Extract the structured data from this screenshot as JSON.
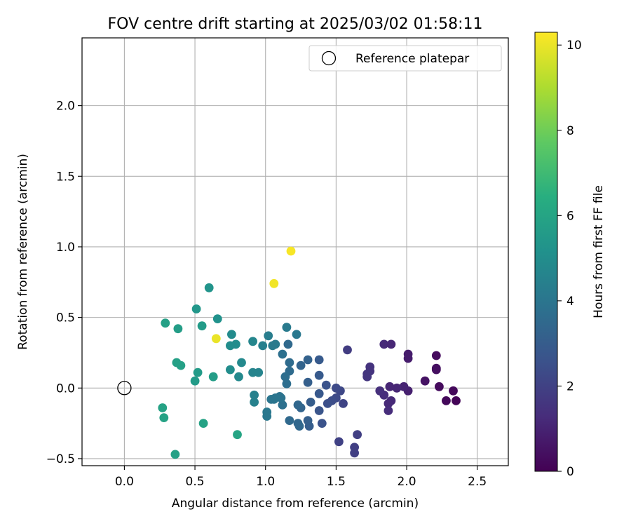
{
  "chart_data": {
    "type": "scatter",
    "title": "FOV centre drift starting at 2025/03/02 01:58:11",
    "xlabel": "Angular distance from reference (arcmin)",
    "ylabel": "Rotation from reference (arcmin)",
    "xlim": [
      -0.3,
      2.72
    ],
    "ylim": [
      -0.55,
      2.48
    ],
    "xticks": [
      "0.0",
      "0.5",
      "1.0",
      "1.5",
      "2.0",
      "2.5"
    ],
    "xtick_values": [
      0.0,
      0.5,
      1.0,
      1.5,
      2.0,
      2.5
    ],
    "yticks": [
      "−0.5",
      "0.0",
      "0.5",
      "1.0",
      "1.5",
      "2.0"
    ],
    "ytick_values": [
      -0.5,
      0.0,
      0.5,
      1.0,
      1.5,
      2.0
    ],
    "grid": true,
    "legend": {
      "placement": "top-right",
      "entries": [
        "Reference platepar"
      ]
    },
    "reference_point": {
      "x": 0.0,
      "y": 0.0
    },
    "colorbar": {
      "label": "Hours from first FF file",
      "colormap": "viridis",
      "range": [
        0,
        10.3
      ],
      "ticks": [
        "0",
        "2",
        "4",
        "6",
        "8",
        "10"
      ],
      "tick_values": [
        0,
        2,
        4,
        6,
        8,
        10
      ]
    },
    "points": [
      {
        "x": 2.21,
        "y": 0.23,
        "c": 0.3
      },
      {
        "x": 2.21,
        "y": 0.14,
        "c": 0.4
      },
      {
        "x": 2.21,
        "y": 0.13,
        "c": 0.4
      },
      {
        "x": 2.23,
        "y": 0.01,
        "c": 0.3
      },
      {
        "x": 2.28,
        "y": -0.09,
        "c": 0.2
      },
      {
        "x": 2.33,
        "y": -0.02,
        "c": 0.2
      },
      {
        "x": 2.35,
        "y": -0.09,
        "c": 0.1
      },
      {
        "x": 2.13,
        "y": 0.05,
        "c": 0.5
      },
      {
        "x": 2.01,
        "y": 0.24,
        "c": 0.8
      },
      {
        "x": 2.01,
        "y": 0.21,
        "c": 0.8
      },
      {
        "x": 2.01,
        "y": -0.02,
        "c": 0.9
      },
      {
        "x": 1.98,
        "y": 0.01,
        "c": 1.0
      },
      {
        "x": 1.93,
        "y": 0.0,
        "c": 1.1
      },
      {
        "x": 1.88,
        "y": 0.01,
        "c": 1.1
      },
      {
        "x": 1.89,
        "y": -0.09,
        "c": 1.2
      },
      {
        "x": 1.87,
        "y": -0.11,
        "c": 1.2
      },
      {
        "x": 1.87,
        "y": -0.16,
        "c": 1.3
      },
      {
        "x": 1.84,
        "y": -0.05,
        "c": 1.3
      },
      {
        "x": 1.81,
        "y": -0.02,
        "c": 1.4
      },
      {
        "x": 1.84,
        "y": 0.31,
        "c": 1.2
      },
      {
        "x": 1.89,
        "y": 0.31,
        "c": 1.1
      },
      {
        "x": 1.74,
        "y": 0.15,
        "c": 1.5
      },
      {
        "x": 1.74,
        "y": 0.12,
        "c": 1.5
      },
      {
        "x": 1.72,
        "y": 0.1,
        "c": 1.6
      },
      {
        "x": 1.72,
        "y": 0.08,
        "c": 1.6
      },
      {
        "x": 1.58,
        "y": 0.27,
        "c": 1.8
      },
      {
        "x": 1.63,
        "y": -0.42,
        "c": 1.9
      },
      {
        "x": 1.63,
        "y": -0.46,
        "c": 1.9
      },
      {
        "x": 1.65,
        "y": -0.33,
        "c": 1.9
      },
      {
        "x": 1.52,
        "y": -0.38,
        "c": 2.0
      },
      {
        "x": 1.55,
        "y": -0.11,
        "c": 2.1
      },
      {
        "x": 1.53,
        "y": -0.02,
        "c": 2.2
      },
      {
        "x": 1.5,
        "y": 0.0,
        "c": 2.3
      },
      {
        "x": 1.5,
        "y": -0.07,
        "c": 2.3
      },
      {
        "x": 1.47,
        "y": -0.09,
        "c": 2.4
      },
      {
        "x": 1.44,
        "y": -0.11,
        "c": 2.5
      },
      {
        "x": 1.43,
        "y": 0.02,
        "c": 2.6
      },
      {
        "x": 1.4,
        "y": -0.25,
        "c": 2.6
      },
      {
        "x": 1.38,
        "y": -0.16,
        "c": 2.7
      },
      {
        "x": 1.38,
        "y": -0.04,
        "c": 2.8
      },
      {
        "x": 1.38,
        "y": 0.09,
        "c": 2.9
      },
      {
        "x": 1.38,
        "y": 0.2,
        "c": 2.9
      },
      {
        "x": 1.32,
        "y": -0.1,
        "c": 3.0
      },
      {
        "x": 1.31,
        "y": -0.27,
        "c": 3.0
      },
      {
        "x": 1.3,
        "y": -0.23,
        "c": 3.1
      },
      {
        "x": 1.3,
        "y": 0.04,
        "c": 3.1
      },
      {
        "x": 1.3,
        "y": 0.2,
        "c": 3.2
      },
      {
        "x": 1.25,
        "y": 0.16,
        "c": 3.3
      },
      {
        "x": 1.25,
        "y": -0.14,
        "c": 3.3
      },
      {
        "x": 1.23,
        "y": -0.12,
        "c": 3.4
      },
      {
        "x": 1.23,
        "y": -0.25,
        "c": 3.4
      },
      {
        "x": 1.24,
        "y": -0.27,
        "c": 3.4
      },
      {
        "x": 1.17,
        "y": -0.23,
        "c": 3.5
      },
      {
        "x": 1.16,
        "y": 0.31,
        "c": 3.5
      },
      {
        "x": 1.17,
        "y": 0.18,
        "c": 3.6
      },
      {
        "x": 1.17,
        "y": 0.12,
        "c": 3.6
      },
      {
        "x": 1.15,
        "y": 0.03,
        "c": 3.7
      },
      {
        "x": 1.14,
        "y": 0.08,
        "c": 3.7
      },
      {
        "x": 1.12,
        "y": 0.24,
        "c": 3.8
      },
      {
        "x": 1.12,
        "y": -0.12,
        "c": 3.8
      },
      {
        "x": 1.11,
        "y": -0.07,
        "c": 3.9
      },
      {
        "x": 1.1,
        "y": -0.06,
        "c": 3.9
      },
      {
        "x": 1.07,
        "y": -0.07,
        "c": 4.0
      },
      {
        "x": 1.06,
        "y": -0.08,
        "c": 4.0
      },
      {
        "x": 1.04,
        "y": -0.08,
        "c": 4.0
      },
      {
        "x": 1.01,
        "y": -0.2,
        "c": 4.1
      },
      {
        "x": 1.01,
        "y": -0.17,
        "c": 4.1
      },
      {
        "x": 1.07,
        "y": 0.31,
        "c": 4.2
      },
      {
        "x": 1.05,
        "y": 0.3,
        "c": 4.2
      },
      {
        "x": 1.02,
        "y": 0.37,
        "c": 4.3
      },
      {
        "x": 1.15,
        "y": 0.43,
        "c": 4.2
      },
      {
        "x": 1.22,
        "y": 0.38,
        "c": 4.1
      },
      {
        "x": 0.98,
        "y": 0.3,
        "c": 4.4
      },
      {
        "x": 0.92,
        "y": -0.05,
        "c": 4.5
      },
      {
        "x": 0.92,
        "y": -0.1,
        "c": 4.5
      },
      {
        "x": 0.95,
        "y": 0.11,
        "c": 4.6
      },
      {
        "x": 0.91,
        "y": 0.11,
        "c": 4.6
      },
      {
        "x": 0.91,
        "y": 0.33,
        "c": 4.7
      },
      {
        "x": 0.83,
        "y": 0.18,
        "c": 4.8
      },
      {
        "x": 0.81,
        "y": 0.08,
        "c": 4.8
      },
      {
        "x": 0.76,
        "y": 0.38,
        "c": 4.9
      },
      {
        "x": 0.75,
        "y": 0.3,
        "c": 5.0
      },
      {
        "x": 0.79,
        "y": 0.31,
        "c": 5.0
      },
      {
        "x": 0.75,
        "y": 0.13,
        "c": 5.0
      },
      {
        "x": 0.66,
        "y": 0.49,
        "c": 5.2
      },
      {
        "x": 0.6,
        "y": 0.71,
        "c": 5.3
      },
      {
        "x": 0.51,
        "y": 0.56,
        "c": 5.4
      },
      {
        "x": 0.55,
        "y": 0.44,
        "c": 5.6
      },
      {
        "x": 0.52,
        "y": 0.11,
        "c": 5.6
      },
      {
        "x": 0.5,
        "y": 0.05,
        "c": 5.6
      },
      {
        "x": 0.63,
        "y": 0.08,
        "c": 5.7
      },
      {
        "x": 0.38,
        "y": 0.42,
        "c": 5.7
      },
      {
        "x": 0.29,
        "y": 0.46,
        "c": 5.8
      },
      {
        "x": 0.37,
        "y": 0.18,
        "c": 5.8
      },
      {
        "x": 0.4,
        "y": 0.16,
        "c": 5.8
      },
      {
        "x": 0.27,
        "y": -0.14,
        "c": 5.9
      },
      {
        "x": 0.28,
        "y": -0.21,
        "c": 5.9
      },
      {
        "x": 0.56,
        "y": -0.25,
        "c": 5.9
      },
      {
        "x": 0.8,
        "y": -0.33,
        "c": 6.0
      },
      {
        "x": 0.36,
        "y": -0.47,
        "c": 5.8
      },
      {
        "x": 0.65,
        "y": 0.35,
        "c": 10.0
      },
      {
        "x": 1.06,
        "y": 0.74,
        "c": 10.1
      },
      {
        "x": 1.18,
        "y": 0.97,
        "c": 10.2
      }
    ]
  }
}
